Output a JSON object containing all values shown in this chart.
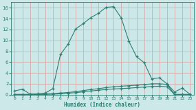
{
  "xlabel": "Humidex (Indice chaleur)",
  "bg_color": "#cce8e8",
  "grid_color": "#b8d4d4",
  "line_color": "#2e7d72",
  "xlim": [
    -0.5,
    23.5
  ],
  "ylim": [
    0,
    17
  ],
  "xticks": [
    0,
    1,
    2,
    3,
    4,
    5,
    6,
    7,
    8,
    9,
    10,
    11,
    12,
    13,
    14,
    15,
    16,
    17,
    18,
    19,
    20,
    21,
    22,
    23
  ],
  "yticks": [
    0,
    2,
    4,
    6,
    8,
    10,
    12,
    14,
    16
  ],
  "curve1_x": [
    0,
    1,
    2,
    3,
    4,
    5,
    6,
    7,
    8,
    9,
    10,
    11,
    12,
    13,
    14,
    15,
    16,
    17,
    18,
    19,
    20,
    21,
    22,
    23
  ],
  "curve1_y": [
    0.7,
    1.0,
    0.1,
    0.15,
    0.3,
    1.1,
    7.4,
    9.3,
    12.1,
    13.1,
    14.2,
    15.0,
    16.1,
    16.2,
    14.1,
    9.8,
    7.0,
    5.9,
    2.9,
    3.1,
    2.0,
    0.5,
    1.2,
    0.1
  ],
  "curve2_x": [
    0,
    1,
    2,
    3,
    4,
    5,
    6,
    7,
    8,
    9,
    10,
    11,
    12,
    13,
    14,
    15,
    16,
    17,
    18,
    19,
    20,
    21,
    22,
    23
  ],
  "curve2_y": [
    0.05,
    0.05,
    0.05,
    0.05,
    0.1,
    0.2,
    0.3,
    0.4,
    0.55,
    0.75,
    0.95,
    1.1,
    1.3,
    1.45,
    1.55,
    1.65,
    1.75,
    1.85,
    2.0,
    2.0,
    1.9,
    0.05,
    0.05,
    0.05
  ],
  "curve3_x": [
    0,
    1,
    2,
    3,
    4,
    5,
    6,
    7,
    8,
    9,
    10,
    11,
    12,
    13,
    14,
    15,
    16,
    17,
    18,
    19,
    20,
    21,
    22,
    23
  ],
  "curve3_y": [
    0.02,
    0.02,
    0.02,
    0.02,
    0.05,
    0.08,
    0.15,
    0.25,
    0.38,
    0.52,
    0.68,
    0.82,
    0.95,
    1.05,
    1.12,
    1.2,
    1.3,
    1.4,
    1.5,
    1.55,
    1.45,
    0.02,
    0.02,
    0.02
  ]
}
